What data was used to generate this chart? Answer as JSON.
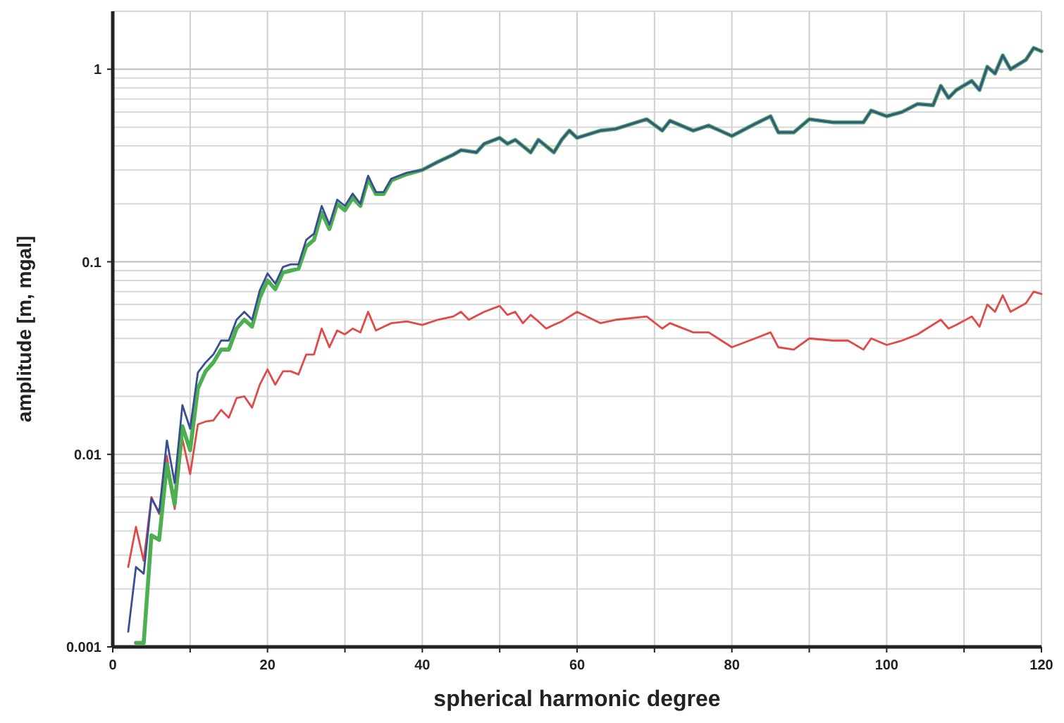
{
  "chart_data": {
    "type": "line",
    "xlabel": "spherical harmonic degree",
    "ylabel": "amplitude [m, mgal]",
    "log": "y",
    "grid": true,
    "xlim": [
      0,
      120
    ],
    "ylim": [
      0.001,
      2
    ],
    "xticks": [
      0,
      {
        "value": 10,
        "label": null
      },
      20,
      {
        "value": 30,
        "label": null
      },
      40,
      {
        "value": 50,
        "label": null
      },
      60,
      {
        "value": 70,
        "label": null
      },
      80,
      {
        "value": 90,
        "label": null
      },
      100,
      {
        "value": 110,
        "label": null
      },
      120
    ],
    "yticks": [
      {
        "value": 0.001,
        "label": "0.001"
      },
      {
        "value": 0.002,
        "label": null
      },
      {
        "value": 0.003,
        "label": null
      },
      {
        "value": 0.004,
        "label": null
      },
      {
        "value": 0.005,
        "label": null
      },
      {
        "value": 0.006,
        "label": null
      },
      {
        "value": 0.007,
        "label": null
      },
      {
        "value": 0.008,
        "label": null
      },
      {
        "value": 0.009,
        "label": null
      },
      {
        "value": 0.01,
        "label": "0.01"
      },
      {
        "value": 0.02,
        "label": null
      },
      {
        "value": 0.03,
        "label": null
      },
      {
        "value": 0.04,
        "label": null
      },
      {
        "value": 0.05,
        "label": null
      },
      {
        "value": 0.06,
        "label": null
      },
      {
        "value": 0.07,
        "label": null
      },
      {
        "value": 0.08,
        "label": null
      },
      {
        "value": 0.09,
        "label": null
      },
      {
        "value": 0.1,
        "label": "0.1"
      },
      {
        "value": 0.2,
        "label": null
      },
      {
        "value": 0.3,
        "label": null
      },
      {
        "value": 0.4,
        "label": null
      },
      {
        "value": 0.5,
        "label": null
      },
      {
        "value": 0.6,
        "label": null
      },
      {
        "value": 0.7,
        "label": null
      },
      {
        "value": 0.8,
        "label": null
      },
      {
        "value": 0.9,
        "label": null
      },
      1,
      {
        "value": 2,
        "label": null
      }
    ],
    "series": [
      {
        "color": "#e04a48",
        "x": [
          2,
          3,
          4,
          5,
          6,
          7,
          8,
          9,
          10,
          11,
          12,
          13,
          14,
          15,
          16,
          17,
          18,
          19,
          20,
          21,
          22,
          23,
          24,
          25,
          26,
          27,
          28,
          29,
          30,
          31,
          32,
          33,
          34,
          35,
          36,
          38,
          40,
          42,
          44,
          45,
          46,
          48,
          50,
          51,
          52,
          53,
          54,
          55,
          56,
          57,
          58,
          60,
          63,
          65,
          69,
          71,
          72,
          75,
          77,
          80,
          83,
          85,
          86,
          88,
          90,
          93,
          95,
          97,
          98,
          100,
          102,
          104,
          107,
          108,
          109,
          111,
          112,
          113,
          114,
          115,
          116,
          118,
          119,
          120
        ],
        "values": [
          0.0026,
          0.0042,
          0.0028,
          0.006,
          0.0049,
          0.0098,
          0.0052,
          0.012,
          0.0079,
          0.0143,
          0.0148,
          0.015,
          0.017,
          0.0155,
          0.0196,
          0.02,
          0.0175,
          0.023,
          0.0276,
          0.023,
          0.027,
          0.027,
          0.026,
          0.033,
          0.033,
          0.045,
          0.036,
          0.044,
          0.042,
          0.045,
          0.043,
          0.055,
          0.044,
          0.046,
          0.048,
          0.049,
          0.047,
          0.05,
          0.052,
          0.055,
          0.05,
          0.055,
          0.059,
          0.053,
          0.055,
          0.048,
          0.053,
          0.049,
          0.045,
          0.047,
          0.049,
          0.055,
          0.048,
          0.05,
          0.052,
          0.045,
          0.048,
          0.043,
          0.043,
          0.036,
          0.04,
          0.043,
          0.036,
          0.035,
          0.04,
          0.039,
          0.039,
          0.035,
          0.04,
          0.037,
          0.039,
          0.042,
          0.05,
          0.045,
          0.047,
          0.052,
          0.046,
          0.06,
          0.055,
          0.067,
          0.055,
          0.061,
          0.07,
          0.068
        ]
      },
      {
        "color": "#4caf50",
        "x": [
          3,
          4,
          5,
          6,
          7,
          8,
          9,
          10,
          11,
          12,
          13,
          14,
          15,
          16,
          17,
          18,
          19,
          20,
          21,
          22,
          23,
          24,
          25,
          26,
          27,
          28,
          29,
          30,
          31,
          32,
          33,
          34,
          35,
          36,
          37,
          38,
          40,
          42,
          44,
          45,
          47,
          48,
          50,
          51,
          52,
          54,
          55,
          57,
          58,
          59,
          60,
          63,
          65,
          69,
          71,
          72,
          75,
          77,
          80,
          83,
          85,
          86,
          88,
          90,
          93,
          95,
          97,
          98,
          100,
          102,
          104,
          106,
          107,
          108,
          109,
          111,
          112,
          113,
          114,
          115,
          116,
          118,
          119,
          120
        ],
        "values": [
          0.00105,
          0.00105,
          0.0038,
          0.0036,
          0.0089,
          0.0055,
          0.014,
          0.0105,
          0.022,
          0.027,
          0.03,
          0.035,
          0.035,
          0.045,
          0.05,
          0.046,
          0.065,
          0.08,
          0.072,
          0.088,
          0.09,
          0.092,
          0.12,
          0.13,
          0.18,
          0.148,
          0.2,
          0.185,
          0.215,
          0.195,
          0.27,
          0.225,
          0.225,
          0.265,
          0.275,
          0.285,
          0.3,
          0.33,
          0.36,
          0.38,
          0.37,
          0.41,
          0.44,
          0.41,
          0.43,
          0.37,
          0.43,
          0.37,
          0.43,
          0.48,
          0.44,
          0.48,
          0.49,
          0.55,
          0.48,
          0.54,
          0.48,
          0.51,
          0.45,
          0.52,
          0.57,
          0.47,
          0.47,
          0.55,
          0.53,
          0.53,
          0.53,
          0.61,
          0.57,
          0.6,
          0.66,
          0.65,
          0.82,
          0.71,
          0.78,
          0.87,
          0.78,
          1.03,
          0.95,
          1.18,
          1.0,
          1.12,
          1.29,
          1.24
        ]
      },
      {
        "color": "#3a4e94",
        "x": [
          2,
          3,
          4,
          5,
          6,
          7,
          8,
          9,
          10,
          11,
          12,
          13,
          14,
          15,
          16,
          17,
          18,
          19,
          20,
          21,
          22,
          23,
          24,
          25,
          26,
          27,
          28,
          29,
          30,
          31,
          32,
          33,
          34,
          35,
          36,
          37,
          38,
          40,
          42,
          44,
          45,
          47,
          48,
          50,
          51,
          52,
          54,
          55,
          57,
          58,
          59,
          60,
          63,
          65,
          69,
          71,
          72,
          75,
          77,
          80,
          83,
          85,
          86,
          88,
          90,
          93,
          95,
          97,
          98,
          100,
          102,
          104,
          106,
          107,
          108,
          109,
          111,
          112,
          113,
          114,
          115,
          116,
          118,
          119,
          120
        ],
        "values": [
          0.0012,
          0.0026,
          0.0024,
          0.0059,
          0.005,
          0.0118,
          0.0071,
          0.018,
          0.0136,
          0.0266,
          0.03,
          0.033,
          0.039,
          0.039,
          0.05,
          0.055,
          0.05,
          0.071,
          0.087,
          0.077,
          0.094,
          0.097,
          0.097,
          0.13,
          0.14,
          0.195,
          0.156,
          0.21,
          0.195,
          0.226,
          0.2,
          0.28,
          0.23,
          0.23,
          0.27,
          0.28,
          0.29,
          0.3,
          0.33,
          0.36,
          0.38,
          0.37,
          0.41,
          0.44,
          0.41,
          0.43,
          0.37,
          0.43,
          0.37,
          0.43,
          0.48,
          0.44,
          0.48,
          0.49,
          0.55,
          0.48,
          0.54,
          0.48,
          0.51,
          0.45,
          0.52,
          0.57,
          0.47,
          0.47,
          0.55,
          0.53,
          0.53,
          0.53,
          0.61,
          0.57,
          0.6,
          0.66,
          0.65,
          0.82,
          0.71,
          0.78,
          0.87,
          0.78,
          1.03,
          0.95,
          1.18,
          1.0,
          1.12,
          1.29,
          1.24
        ]
      }
    ]
  }
}
